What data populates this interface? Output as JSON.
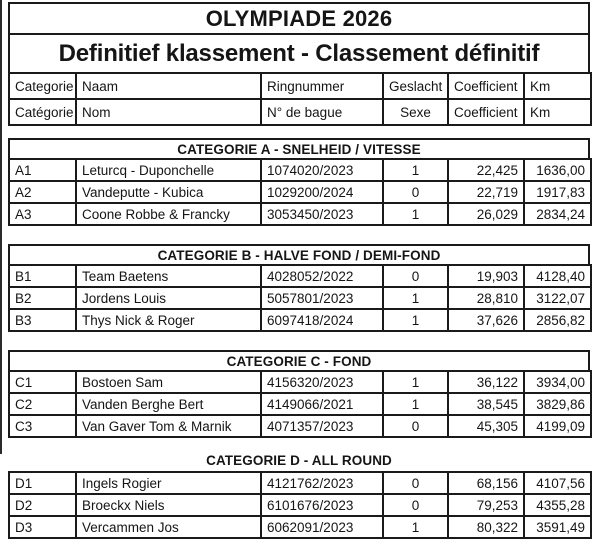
{
  "page": {
    "title": "OLYMPIADE 2026",
    "subtitle": "Definitief klassement - Classement définitif"
  },
  "colors": {
    "background": "#ffffff",
    "text": "#151515",
    "border": "#1a1a1a"
  },
  "column_headers": {
    "row1": [
      "Categorie",
      "Naam",
      "Ringnummer",
      "Geslacht",
      "Coefficient",
      "Km"
    ],
    "row2": [
      "Catégorie",
      "Nom",
      "N° de bague",
      "Sexe",
      "Coefficient",
      "Km"
    ]
  },
  "sections": [
    {
      "header": "CATEGORIE A - SNELHEID / VITESSE",
      "rows": [
        {
          "code": "A1",
          "name": "Leturcq - Duponchelle",
          "ring": "1074020/2023",
          "sex": "1",
          "coefficient": "22,425",
          "km": "1636,00"
        },
        {
          "code": "A2",
          "name": "Vandeputte - Kubica",
          "ring": "1029200/2024",
          "sex": "0",
          "coefficient": "22,719",
          "km": "1917,83"
        },
        {
          "code": "A3",
          "name": "Coone Robbe & Francky",
          "ring": "3053450/2023",
          "sex": "1",
          "coefficient": "26,029",
          "km": "2834,24"
        }
      ]
    },
    {
      "header": "CATEGORIE B - HALVE FOND / DEMI-FOND",
      "rows": [
        {
          "code": "B1",
          "name": "Team Baetens",
          "ring": "4028052/2022",
          "sex": "0",
          "coefficient": "19,903",
          "km": "4128,40"
        },
        {
          "code": "B2",
          "name": "Jordens Louis",
          "ring": "5057801/2023",
          "sex": "1",
          "coefficient": "28,810",
          "km": "3122,07"
        },
        {
          "code": "B3",
          "name": "Thys Nick & Roger",
          "ring": "6097418/2024",
          "sex": "1",
          "coefficient": "37,626",
          "km": "2856,82"
        }
      ]
    },
    {
      "header": "CATEGORIE C - FOND",
      "rows": [
        {
          "code": "C1",
          "name": "Bostoen Sam",
          "ring": "4156320/2023",
          "sex": "1",
          "coefficient": "36,122",
          "km": "3934,00"
        },
        {
          "code": "C2",
          "name": "Vanden Berghe Bert",
          "ring": "4149066/2021",
          "sex": "1",
          "coefficient": "38,545",
          "km": "3829,86"
        },
        {
          "code": "C3",
          "name": "Van Gaver Tom & Marnik",
          "ring": "4071357/2023",
          "sex": "0",
          "coefficient": "45,305",
          "km": "4199,09"
        }
      ]
    },
    {
      "header": "CATEGORIE D - ALL ROUND",
      "rows": [
        {
          "code": "D1",
          "name": "Ingels Rogier",
          "ring": "4121762/2023",
          "sex": "0",
          "coefficient": "68,156",
          "km": "4107,56"
        },
        {
          "code": "D2",
          "name": "Broeckx Niels",
          "ring": "6101676/2023",
          "sex": "0",
          "coefficient": "79,253",
          "km": "4355,28"
        },
        {
          "code": "D3",
          "name": "Vercammen Jos",
          "ring": "6062091/2023",
          "sex": "1",
          "coefficient": "80,322",
          "km": "3591,49"
        }
      ]
    }
  ]
}
